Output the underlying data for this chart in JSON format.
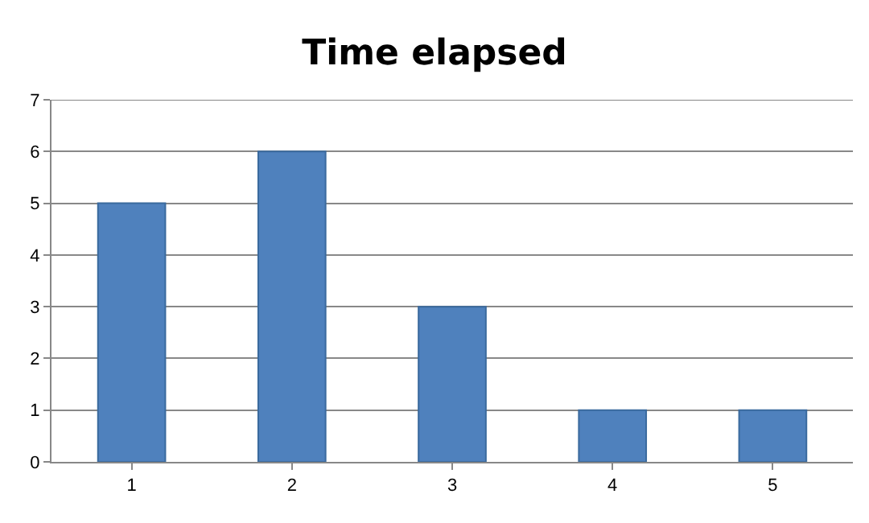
{
  "chart_data": {
    "type": "bar",
    "title": "Time elapsed",
    "categories": [
      "1",
      "2",
      "3",
      "4",
      "5"
    ],
    "values": [
      5,
      6,
      3,
      1,
      1
    ],
    "color": "#4f81bd",
    "ylim": [
      0,
      7
    ],
    "yticks": [
      0,
      1,
      2,
      3,
      4,
      5,
      6,
      7
    ],
    "grid": "y"
  }
}
